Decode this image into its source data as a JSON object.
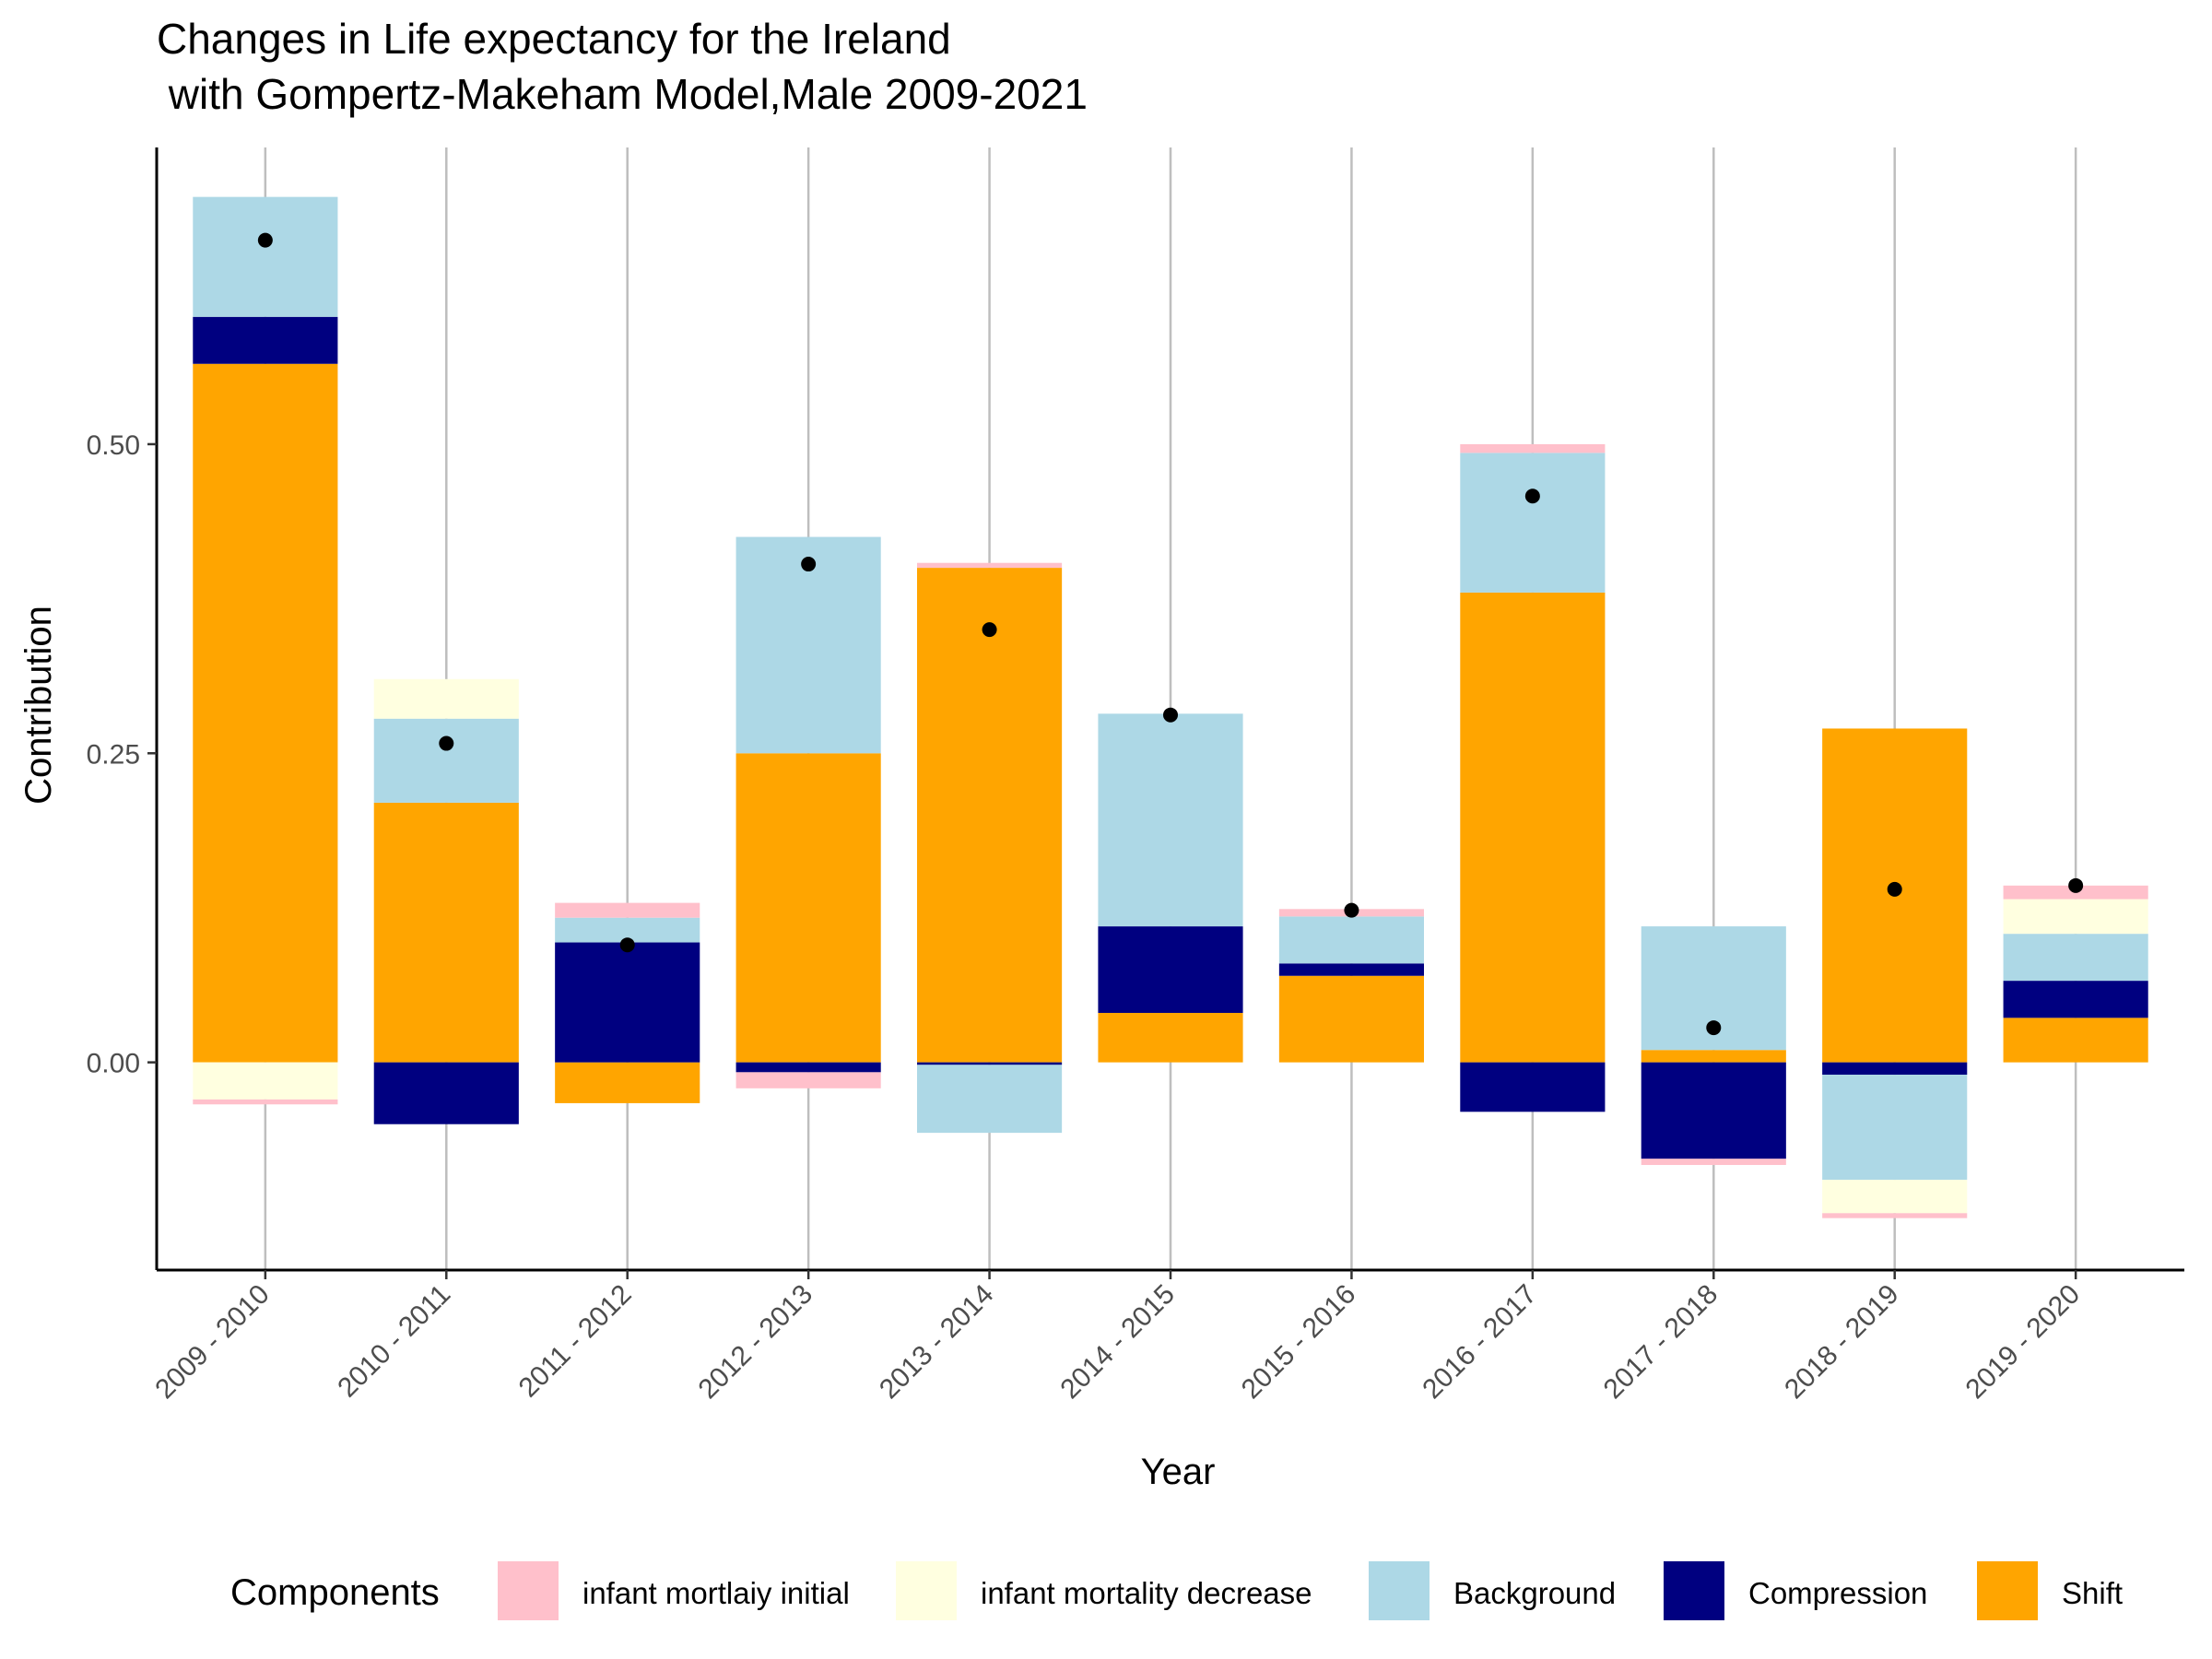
{
  "chart_data": {
    "type": "bar",
    "stacked": true,
    "diverging": true,
    "title_lines": [
      "Changes in Life expectancy for the Ireland",
      " with Gompertz-Makeham Model,Male 2009-2021"
    ],
    "xlabel": "Year",
    "ylabel": "Contribution",
    "ylim": [
      -0.168,
      0.74
    ],
    "yticks": [
      0,
      0.25,
      0.5
    ],
    "ytick_labels": [
      "0.00",
      "0.25",
      "0.50"
    ],
    "grid": "vertical lines at each category",
    "categories": [
      "2009 - 2010",
      "2010 - 2011",
      "2011 - 2012",
      "2012 - 2013",
      "2013 - 2014",
      "2014 - 2015",
      "2015 - 2016",
      "2016 - 2017",
      "2017 - 2018",
      "2018 - 2019",
      "2019 - 2020"
    ],
    "legend": {
      "title": "Components",
      "position": "bottom"
    },
    "series": [
      {
        "name": "Shift",
        "color": "#FFA500",
        "values": [
          0.565,
          0.21,
          -0.033,
          0.25,
          0.4,
          0.04,
          0.07,
          0.38,
          0.01,
          0.27,
          0.036
        ]
      },
      {
        "name": "Compression",
        "color": "#000080",
        "values": [
          0.038,
          -0.05,
          0.097,
          -0.008,
          -0.002,
          0.07,
          0.01,
          -0.04,
          -0.078,
          -0.01,
          0.03
        ]
      },
      {
        "name": "Background",
        "color": "#ADD8E6",
        "values": [
          0.097,
          0.068,
          0.02,
          0.175,
          -0.055,
          0.172,
          0.038,
          0.113,
          0.1,
          -0.085,
          0.038
        ]
      },
      {
        "name": "infant mortality decrease",
        "color": "#FFFFE0",
        "values": [
          -0.03,
          0.032,
          0.0,
          0.0,
          0.0,
          0.0,
          0.0,
          0.0,
          0.0,
          -0.027,
          0.028
        ]
      },
      {
        "name": "infant mortlaiy initial",
        "color": "#FFC0CB",
        "values": [
          -0.004,
          0.0,
          0.012,
          -0.013,
          0.004,
          0.0,
          0.006,
          0.007,
          -0.005,
          -0.004,
          0.011
        ]
      }
    ],
    "totals": [
      0.665,
      0.258,
      0.095,
      0.403,
      0.35,
      0.281,
      0.123,
      0.458,
      0.028,
      0.14,
      0.143
    ],
    "legend_order": [
      "infant mortlaiy initial",
      "infant mortality decrease",
      "Background",
      "Compression",
      "Shift"
    ]
  }
}
